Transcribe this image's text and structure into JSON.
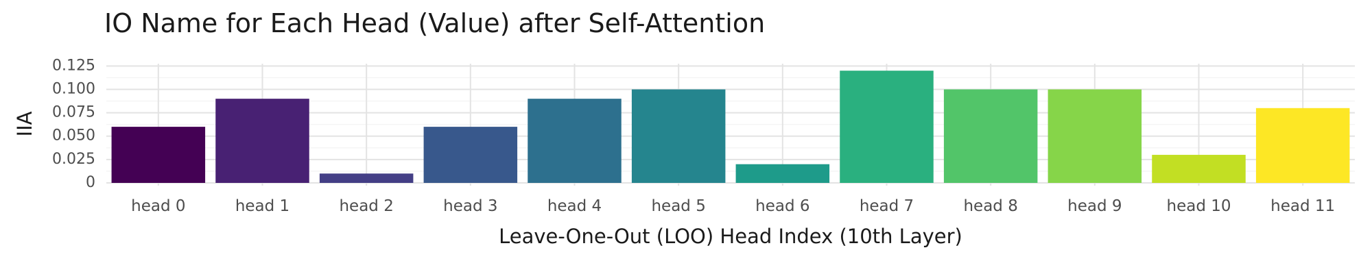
{
  "chart_data": {
    "type": "bar",
    "title": "IO Name for Each Head (Value) after Self-Attention",
    "xlabel": "Leave-One-Out (LOO) Head Index (10th Layer)",
    "ylabel": "IIA",
    "categories": [
      "head 0",
      "head 1",
      "head 2",
      "head 3",
      "head 4",
      "head 5",
      "head 6",
      "head 7",
      "head 8",
      "head 9",
      "head 10",
      "head 11"
    ],
    "values": [
      0.06,
      0.09,
      0.01,
      0.06,
      0.09,
      0.1,
      0.02,
      0.12,
      0.1,
      0.1,
      0.03,
      0.08
    ],
    "colors": [
      "#440154",
      "#482173",
      "#433e85",
      "#38588c",
      "#2d708e",
      "#25858e",
      "#1e9b8a",
      "#2ab07f",
      "#52c569",
      "#86d549",
      "#c2df23",
      "#fde725"
    ],
    "yticks": [
      "0",
      "0.025",
      "0.050",
      "0.075",
      "0.100",
      "0.125"
    ],
    "ytick_values": [
      0,
      0.025,
      0.05,
      0.075,
      0.1,
      0.125
    ],
    "ylim": [
      0,
      0.126
    ],
    "grid": true,
    "legend": "none"
  }
}
